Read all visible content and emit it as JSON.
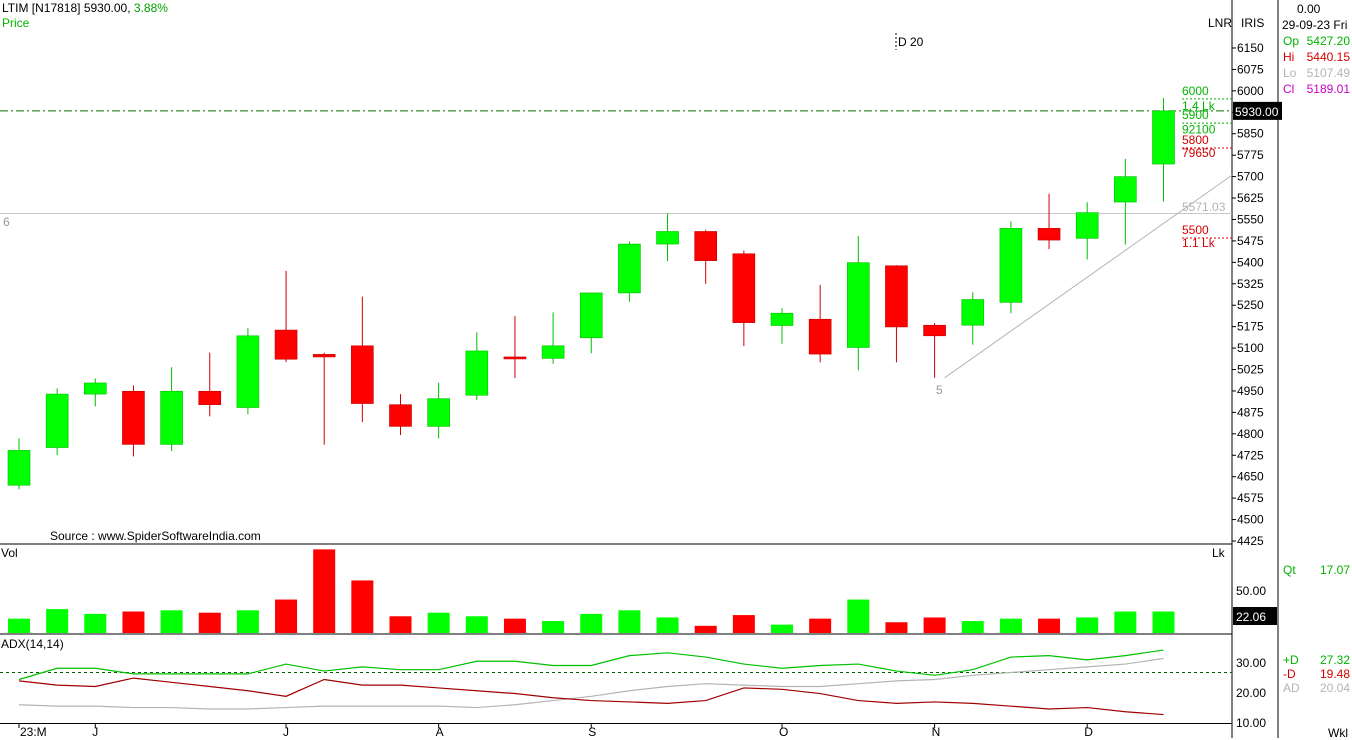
{
  "header": {
    "title": "LTIM [N17818]",
    "last_price": "5930.00,",
    "change_pct": "3.88%",
    "price_label": "Price",
    "lnr": "LNR",
    "iris": "IRIS",
    "source": "Source : www.SpiderSoftwareIndia.com",
    "annotation_d20": "D 20",
    "left_marker": "6",
    "low_marker": "5"
  },
  "info_panel": {
    "top_value": "0.00",
    "date": "29-09-23 Fri",
    "rows": [
      {
        "label": "Op",
        "value": "5427.20",
        "color": "#00b400"
      },
      {
        "label": "Hi",
        "value": "5440.15",
        "color": "#d40000"
      },
      {
        "label": "Lo",
        "value": "5107.49",
        "color": "#b4b4b4"
      },
      {
        "label": "Cl",
        "value": "5189.01",
        "color": "#c800c8"
      }
    ],
    "qt_label": "Qt",
    "qt_value": "17.07",
    "adx_rows": [
      {
        "label": "+D",
        "value": "27.32",
        "color": "#00b400"
      },
      {
        "label": "-D",
        "value": "19.48",
        "color": "#d40000"
      },
      {
        "label": "AD",
        "value": "20.04",
        "color": "#b4b4b4"
      }
    ],
    "period": "Wkl"
  },
  "price_axis": {
    "ticks": [
      "6150",
      "6075",
      "6000",
      "5925",
      "5850",
      "5775",
      "5700",
      "5625",
      "5550",
      "5475",
      "5400",
      "5325",
      "5250",
      "5175",
      "5100",
      "5025",
      "4950",
      "4875",
      "4800",
      "4725",
      "4650",
      "4575",
      "4500",
      "4425"
    ],
    "current_box": "5930.00",
    "level_labels": [
      {
        "text": "6000",
        "value": 6000,
        "color": "#00b400"
      },
      {
        "text": "1.4 Lk",
        "value": 5947,
        "color": "#00b400"
      },
      {
        "text": "5900",
        "value": 5915,
        "color": "#00b400"
      },
      {
        "text": "92100",
        "value": 5865,
        "color": "#00b400"
      },
      {
        "text": "5800",
        "value": 5828,
        "color": "#d40000"
      },
      {
        "text": "79650",
        "value": 5782,
        "color": "#d40000"
      },
      {
        "text": "5571.03",
        "value": 5593,
        "color": "#b4b4b4"
      },
      {
        "text": "5500",
        "value": 5513,
        "color": "#d40000"
      },
      {
        "text": "1.1 Lk",
        "value": 5467,
        "color": "#d40000"
      }
    ]
  },
  "volume_axis": {
    "unit": "Lk",
    "tick": "50.00",
    "current_box": "22.06",
    "label": "Vol"
  },
  "adx_axis": {
    "label": "ADX(14,14)",
    "ticks": [
      "30.00",
      "20.00",
      "10.00"
    ]
  },
  "x_axis": {
    "labels": [
      "23:M",
      "J",
      "J",
      "A",
      "S",
      "O",
      "N",
      "D"
    ]
  },
  "chart_data": {
    "type": "candlestick",
    "title": "LTIM [N17818]",
    "ylim": [
      4425,
      6175
    ],
    "reference_lines": {
      "dashdot_price": 5930,
      "gray_horizontal": 5571.03
    },
    "trendline": [
      {
        "bar": 24,
        "price": 4996
      },
      {
        "bar": 31.9,
        "price": 5715
      }
    ],
    "candles": [
      {
        "o": 4620,
        "h": 4784,
        "l": 4606,
        "c": 4742
      },
      {
        "o": 4752,
        "h": 4959,
        "l": 4726,
        "c": 4939
      },
      {
        "o": 4939,
        "h": 4994,
        "l": 4896,
        "c": 4978
      },
      {
        "o": 4949,
        "h": 4969,
        "l": 4721,
        "c": 4763
      },
      {
        "o": 4763,
        "h": 5033,
        "l": 4740,
        "c": 4949
      },
      {
        "o": 4949,
        "h": 5084,
        "l": 4861,
        "c": 4902
      },
      {
        "o": 4892,
        "h": 5170,
        "l": 4868,
        "c": 5143
      },
      {
        "o": 5163,
        "h": 5370,
        "l": 5051,
        "c": 5061
      },
      {
        "o": 5078,
        "h": 5084,
        "l": 4762,
        "c": 5069
      },
      {
        "o": 5108,
        "h": 5280,
        "l": 4841,
        "c": 4906
      },
      {
        "o": 4902,
        "h": 4939,
        "l": 4796,
        "c": 4826
      },
      {
        "o": 4826,
        "h": 4979,
        "l": 4784,
        "c": 4923
      },
      {
        "o": 4935,
        "h": 5155,
        "l": 4918,
        "c": 5090
      },
      {
        "o": 5069,
        "h": 5212,
        "l": 4995,
        "c": 5066
      },
      {
        "o": 5064,
        "h": 5225,
        "l": 5045,
        "c": 5108
      },
      {
        "o": 5136,
        "h": 5288,
        "l": 5082,
        "c": 5293
      },
      {
        "o": 5293,
        "h": 5473,
        "l": 5262,
        "c": 5464
      },
      {
        "o": 5464,
        "h": 5572,
        "l": 5404,
        "c": 5508
      },
      {
        "o": 5508,
        "h": 5514,
        "l": 5325,
        "c": 5406
      },
      {
        "o": 5430,
        "h": 5441,
        "l": 5107,
        "c": 5189
      },
      {
        "o": 5179,
        "h": 5240,
        "l": 5115,
        "c": 5222
      },
      {
        "o": 5201,
        "h": 5321,
        "l": 5050,
        "c": 5079
      },
      {
        "o": 5102,
        "h": 5492,
        "l": 5022,
        "c": 5399
      },
      {
        "o": 5388,
        "h": 5390,
        "l": 5050,
        "c": 5174
      },
      {
        "o": 5180,
        "h": 5188,
        "l": 4996,
        "c": 5143
      },
      {
        "o": 5180,
        "h": 5295,
        "l": 5112,
        "c": 5270
      },
      {
        "o": 5260,
        "h": 5543,
        "l": 5222,
        "c": 5519
      },
      {
        "o": 5519,
        "h": 5640,
        "l": 5446,
        "c": 5478
      },
      {
        "o": 5484,
        "h": 5610,
        "l": 5410,
        "c": 5574
      },
      {
        "o": 5611,
        "h": 5762,
        "l": 5462,
        "c": 5700
      },
      {
        "o": 5744,
        "h": 5975,
        "l": 5613,
        "c": 5930
      }
    ],
    "volume": [
      12,
      20,
      16,
      18,
      19,
      17,
      19,
      28,
      70,
      44,
      14,
      17,
      14,
      12,
      10,
      16,
      19,
      13,
      6,
      15,
      7,
      12,
      28,
      9,
      13,
      10,
      12,
      12,
      13,
      18,
      18
    ],
    "volume_ylim": [
      0,
      72
    ],
    "adx_ylim": [
      7,
      38
    ],
    "plus_di": [
      22.5,
      26.5,
      26.5,
      24.5,
      24.5,
      24.5,
      24.5,
      28,
      25.5,
      27,
      26,
      26,
      29,
      29,
      27.5,
      27.5,
      31,
      32,
      30.5,
      28,
      26.5,
      27.5,
      28,
      25.5,
      24,
      26,
      30.5,
      31,
      29.5,
      31,
      33
    ],
    "minus_di": [
      22,
      20.5,
      20,
      23,
      21.5,
      20,
      18.5,
      16.5,
      22.5,
      20.5,
      20.5,
      19.5,
      18.5,
      17.5,
      16,
      15,
      14.5,
      14,
      15,
      19.5,
      19,
      17.5,
      15,
      14,
      14.5,
      14,
      13,
      12,
      12.5,
      11,
      10
    ],
    "adx": [
      13.5,
      13,
      13,
      12.5,
      12.5,
      12,
      12,
      12.5,
      13,
      13,
      13,
      13,
      12.5,
      13.5,
      15,
      16.5,
      18.5,
      20,
      21,
      20.5,
      20,
      20,
      21,
      22,
      22.5,
      24,
      25,
      26,
      27,
      28,
      30
    ],
    "dashed_levels": {
      "adx_panel": 25
    }
  }
}
